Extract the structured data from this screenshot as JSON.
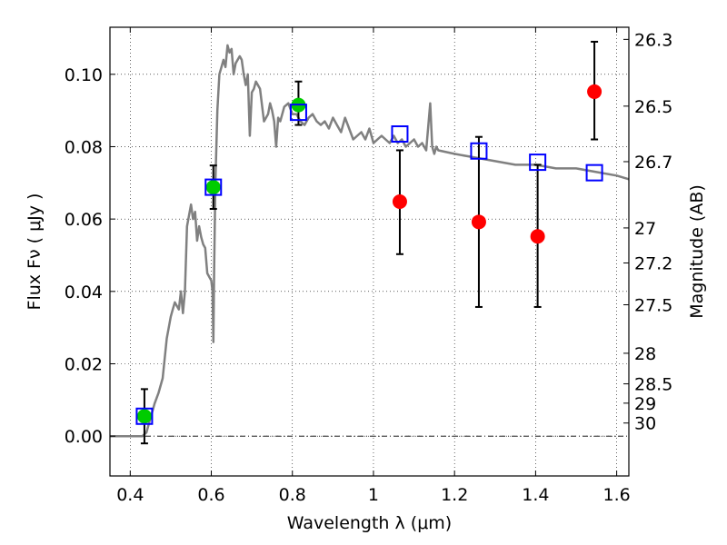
{
  "chart_data": {
    "type": "scatter",
    "xlabel": "Wavelength  λ (μm)",
    "ylabel": "Flux  Fν ( μJy )",
    "y2label": "Magnitude (AB)",
    "xlim": [
      0.35,
      1.63
    ],
    "ylim": [
      -0.011,
      0.113
    ],
    "xticks": [
      0.4,
      0.6,
      0.8,
      1.0,
      1.2,
      1.4,
      1.6
    ],
    "xtick_labels": [
      "0.4",
      "0.6",
      "0.8",
      "1",
      "1.2",
      "1.4",
      "1.6"
    ],
    "yticks": [
      0.0,
      0.02,
      0.04,
      0.06,
      0.08,
      0.1
    ],
    "ytick_labels": [
      "0.00",
      "0.02",
      "0.04",
      "0.06",
      "0.08",
      "0.10"
    ],
    "y2ticks": [
      26.3,
      26.5,
      26.7,
      27,
      27.2,
      27.5,
      28,
      28.5,
      29,
      30
    ],
    "y2tick_labels": [
      "26.3",
      "26.5",
      "26.7",
      "27",
      "27.2",
      "27.5",
      "28",
      "28.5",
      "29",
      "30"
    ],
    "grid": true,
    "zero_line": true,
    "colors": {
      "model": "#808080",
      "detected": "#00cc00",
      "other": "#ff0000",
      "model_photometry": "#0000ff",
      "errorbar": "#000000"
    },
    "series": [
      {
        "style": "line",
        "color": "#808080",
        "x": [
          0.35,
          0.42,
          0.43,
          0.44,
          0.45,
          0.46,
          0.47,
          0.48,
          0.49,
          0.495,
          0.5,
          0.505,
          0.51,
          0.52,
          0.525,
          0.53,
          0.535,
          0.54,
          0.55,
          0.555,
          0.56,
          0.565,
          0.57,
          0.575,
          0.58,
          0.585,
          0.59,
          0.595,
          0.6,
          0.603,
          0.605,
          0.607,
          0.61,
          0.615,
          0.62,
          0.625,
          0.63,
          0.635,
          0.64,
          0.645,
          0.65,
          0.655,
          0.66,
          0.665,
          0.67,
          0.675,
          0.68,
          0.685,
          0.69,
          0.695,
          0.7,
          0.705,
          0.71,
          0.72,
          0.73,
          0.74,
          0.745,
          0.75,
          0.755,
          0.76,
          0.765,
          0.77,
          0.78,
          0.79,
          0.8,
          0.81,
          0.82,
          0.83,
          0.84,
          0.85,
          0.86,
          0.87,
          0.88,
          0.89,
          0.9,
          0.91,
          0.92,
          0.93,
          0.94,
          0.95,
          0.96,
          0.97,
          0.98,
          0.99,
          1.0,
          1.01,
          1.02,
          1.03,
          1.04,
          1.05,
          1.06,
          1.07,
          1.08,
          1.09,
          1.1,
          1.11,
          1.12,
          1.13,
          1.14,
          1.145,
          1.15,
          1.155,
          1.16,
          1.2,
          1.25,
          1.3,
          1.35,
          1.4,
          1.45,
          1.5,
          1.55,
          1.6,
          1.63
        ],
        "y": [
          0.0,
          0.0,
          0.0,
          0.001,
          0.005,
          0.009,
          0.012,
          0.016,
          0.027,
          0.03,
          0.033,
          0.035,
          0.037,
          0.035,
          0.04,
          0.034,
          0.04,
          0.058,
          0.064,
          0.06,
          0.062,
          0.054,
          0.058,
          0.055,
          0.053,
          0.052,
          0.045,
          0.044,
          0.043,
          0.04,
          0.026,
          0.045,
          0.07,
          0.09,
          0.1,
          0.102,
          0.104,
          0.102,
          0.108,
          0.106,
          0.107,
          0.1,
          0.103,
          0.104,
          0.105,
          0.104,
          0.1,
          0.097,
          0.1,
          0.083,
          0.095,
          0.096,
          0.098,
          0.096,
          0.087,
          0.089,
          0.092,
          0.09,
          0.087,
          0.08,
          0.088,
          0.087,
          0.091,
          0.092,
          0.089,
          0.089,
          0.087,
          0.086,
          0.088,
          0.089,
          0.087,
          0.086,
          0.087,
          0.085,
          0.088,
          0.086,
          0.084,
          0.088,
          0.085,
          0.082,
          0.083,
          0.084,
          0.082,
          0.085,
          0.081,
          0.082,
          0.083,
          0.082,
          0.081,
          0.083,
          0.081,
          0.082,
          0.08,
          0.081,
          0.082,
          0.08,
          0.081,
          0.079,
          0.092,
          0.08,
          0.078,
          0.08,
          0.079,
          0.078,
          0.077,
          0.076,
          0.075,
          0.075,
          0.074,
          0.074,
          0.073,
          0.072,
          0.071
        ]
      },
      {
        "style": "circle",
        "color": "#00cc00",
        "x": [
          0.435,
          0.605,
          0.815
        ],
        "y": [
          0.0055,
          0.0688,
          0.0915
        ],
        "yerr_low": [
          0.0075,
          0.006,
          0.0055
        ],
        "yerr_high": [
          0.0075,
          0.006,
          0.0065
        ]
      },
      {
        "style": "circle",
        "color": "#ff0000",
        "x": [
          1.065,
          1.26,
          1.405,
          1.545
        ],
        "y": [
          0.0648,
          0.0592,
          0.0552,
          0.0952
        ],
        "yerr_low": [
          0.0145,
          0.0235,
          0.0195,
          0.0132
        ],
        "yerr_high": [
          0.0142,
          0.0235,
          0.0198,
          0.0138
        ]
      },
      {
        "style": "open-square",
        "color": "#0000ff",
        "x": [
          0.435,
          0.605,
          0.815,
          1.065,
          1.26,
          1.405,
          1.545
        ],
        "y": [
          0.0055,
          0.0688,
          0.0895,
          0.0835,
          0.0788,
          0.0757,
          0.0728
        ]
      }
    ]
  }
}
